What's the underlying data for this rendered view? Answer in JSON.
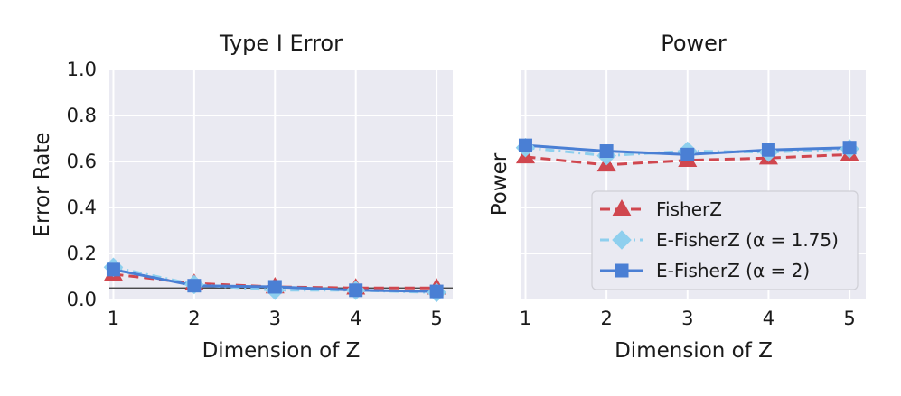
{
  "chart_data": [
    {
      "type": "line",
      "title": "Type I Error",
      "xlabel": "Dimension of Z",
      "ylabel": "Error Rate",
      "x": [
        1,
        2,
        3,
        4,
        5
      ],
      "xticks": [
        "1",
        "2",
        "3",
        "4",
        "5"
      ],
      "xlim": [
        0.95,
        5.2
      ],
      "ylim": [
        0,
        1.0
      ],
      "yticks": [
        "0.0",
        "0.2",
        "0.4",
        "0.6",
        "0.8",
        "1.0"
      ],
      "grid": true,
      "background": "#eaeaf2",
      "reference_line": {
        "y": 0.05,
        "color": "#333333"
      },
      "series": [
        {
          "name": "FisherZ",
          "values": [
            0.11,
            0.07,
            0.055,
            0.05,
            0.05
          ],
          "color": "#d0474f",
          "style": "dashed",
          "marker": "triangle"
        },
        {
          "name": "E-FisherZ (α = 1.75)",
          "values": [
            0.14,
            0.065,
            0.04,
            0.04,
            0.03
          ],
          "color": "#8ecfee",
          "style": "dashdot",
          "marker": "diamond"
        },
        {
          "name": "E-FisherZ (α = 2)",
          "values": [
            0.13,
            0.06,
            0.055,
            0.04,
            0.035
          ],
          "color": "#4a7fd4",
          "style": "solid",
          "marker": "square"
        }
      ]
    },
    {
      "type": "line",
      "title": "Power",
      "xlabel": "Dimension of Z",
      "ylabel": "Power",
      "x": [
        1,
        2,
        3,
        4,
        5
      ],
      "xticks": [
        "1",
        "2",
        "3",
        "4",
        "5"
      ],
      "xlim": [
        0.95,
        5.2
      ],
      "ylim": [
        0,
        1.0
      ],
      "yticks": [],
      "grid": true,
      "background": "#eaeaf2",
      "legend": {
        "placement": "lower-right",
        "entries": [
          "FisherZ",
          "E-FisherZ (α = 1.75)",
          "E-FisherZ (α = 2)"
        ]
      },
      "series": [
        {
          "name": "FisherZ",
          "values": [
            0.62,
            0.585,
            0.605,
            0.615,
            0.63
          ],
          "color": "#d0474f",
          "style": "dashed",
          "marker": "triangle"
        },
        {
          "name": "E-FisherZ (α = 1.75)",
          "values": [
            0.66,
            0.625,
            0.645,
            0.64,
            0.655
          ],
          "color": "#8ecfee",
          "style": "dashdot",
          "marker": "diamond"
        },
        {
          "name": "E-FisherZ (α = 2)",
          "values": [
            0.67,
            0.645,
            0.63,
            0.65,
            0.66
          ],
          "color": "#4a7fd4",
          "style": "solid",
          "marker": "square"
        }
      ]
    }
  ]
}
